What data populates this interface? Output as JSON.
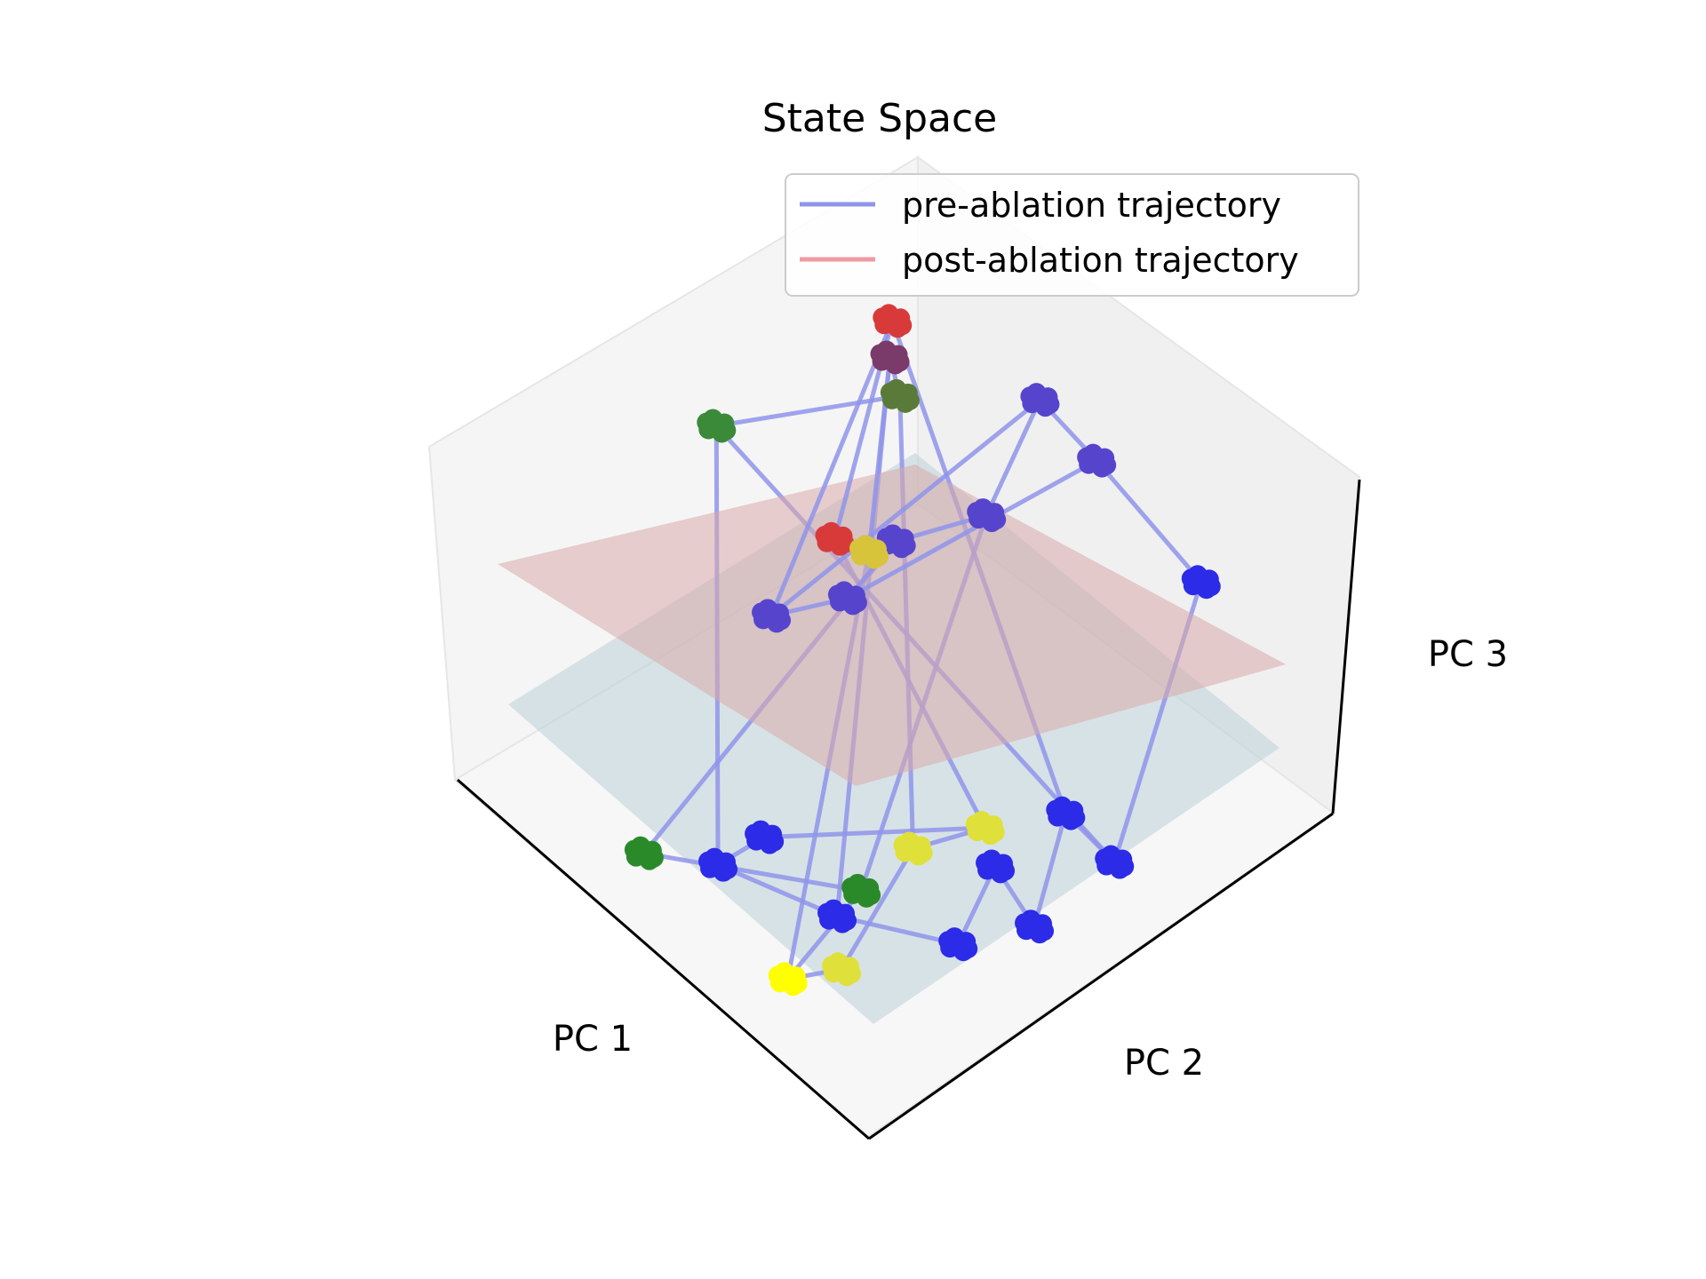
{
  "chart_data": {
    "type": "scatter",
    "projection": "3d",
    "title": "State Space",
    "axes": {
      "x": {
        "label": "PC 1"
      },
      "y": {
        "label": "PC 2"
      },
      "z": {
        "label": "PC 3"
      }
    },
    "grid": false,
    "legend": {
      "placement": "top-right",
      "entries": [
        {
          "label": "pre-ablation trajectory",
          "color": "#8f94ea"
        },
        {
          "label": "post-ablation trajectory",
          "color": "#ef9aa0"
        }
      ]
    },
    "planes": [
      {
        "role": "upper",
        "color": "#d9a9aa",
        "opacity": 0.55
      },
      {
        "role": "lower",
        "color": "#b7ced6",
        "opacity": 0.5
      }
    ],
    "series": [
      {
        "role": "pre-ablation trajectory",
        "color": "#8f94ea",
        "points": [
          {
            "x": 0.15,
            "y": 0.85,
            "z": 0.62,
            "color": "#2b2be8"
          },
          {
            "x": 0.08,
            "y": 0.52,
            "z": 0.62,
            "color": "#5645cc"
          },
          {
            "x": 0.05,
            "y": 0.35,
            "z": 0.62,
            "color": "#5645cc"
          },
          {
            "x": 0.3,
            "y": 0.5,
            "z": 0.62,
            "color": "#5645cc"
          },
          {
            "x": 0.45,
            "y": 0.45,
            "z": 0.62,
            "color": "#5645cc"
          },
          {
            "x": 0.6,
            "y": 0.5,
            "z": 0.62,
            "color": "#5645cc"
          },
          {
            "x": 0.72,
            "y": 0.45,
            "z": 0.62,
            "color": "#5645cc"
          },
          {
            "x": 0.1,
            "y": 0.05,
            "z": 0.62,
            "color": "#d83a3a"
          },
          {
            "x": 0.52,
            "y": 0.38,
            "z": 0.62,
            "color": "#d83a3a"
          },
          {
            "x": 0.5,
            "y": 0.44,
            "z": 0.62,
            "color": "#d7c43a"
          },
          {
            "x": 0.15,
            "y": 0.1,
            "z": 0.6,
            "color": "#7a3a6a"
          },
          {
            "x": 0.2,
            "y": 0.18,
            "z": 0.6,
            "color": "#5a7a3a"
          },
          {
            "x": 0.48,
            "y": 0.05,
            "z": 0.62,
            "color": "#3a8a3a"
          },
          {
            "x": 0.4,
            "y": 0.92,
            "z": 0.1,
            "color": "#2b2be8"
          },
          {
            "x": 0.38,
            "y": 0.78,
            "z": 0.1,
            "color": "#2b2be8"
          },
          {
            "x": 0.6,
            "y": 0.95,
            "z": 0.1,
            "color": "#2b2be8"
          },
          {
            "x": 0.55,
            "y": 0.8,
            "z": 0.1,
            "color": "#2b2be8"
          },
          {
            "x": 0.72,
            "y": 0.9,
            "z": 0.1,
            "color": "#2b2be8"
          },
          {
            "x": 0.82,
            "y": 0.72,
            "z": 0.1,
            "color": "#2b2be8"
          },
          {
            "x": 0.88,
            "y": 0.5,
            "z": 0.1,
            "color": "#2b2be8"
          },
          {
            "x": 0.78,
            "y": 0.5,
            "z": 0.1,
            "color": "#2b2be8"
          },
          {
            "x": 0.5,
            "y": 0.72,
            "z": 0.1,
            "color": "#e0e03a"
          },
          {
            "x": 0.62,
            "y": 0.68,
            "z": 0.1,
            "color": "#e0e03a"
          },
          {
            "x": 0.9,
            "y": 0.82,
            "z": 0.1,
            "color": "#e0e03a"
          },
          {
            "x": 0.98,
            "y": 0.78,
            "z": 0.1,
            "color": "#ffff00"
          },
          {
            "x": 0.75,
            "y": 0.7,
            "z": 0.1,
            "color": "#2a8a2a"
          },
          {
            "x": 0.95,
            "y": 0.4,
            "z": 0.1,
            "color": "#2a8a2a"
          }
        ]
      }
    ]
  }
}
